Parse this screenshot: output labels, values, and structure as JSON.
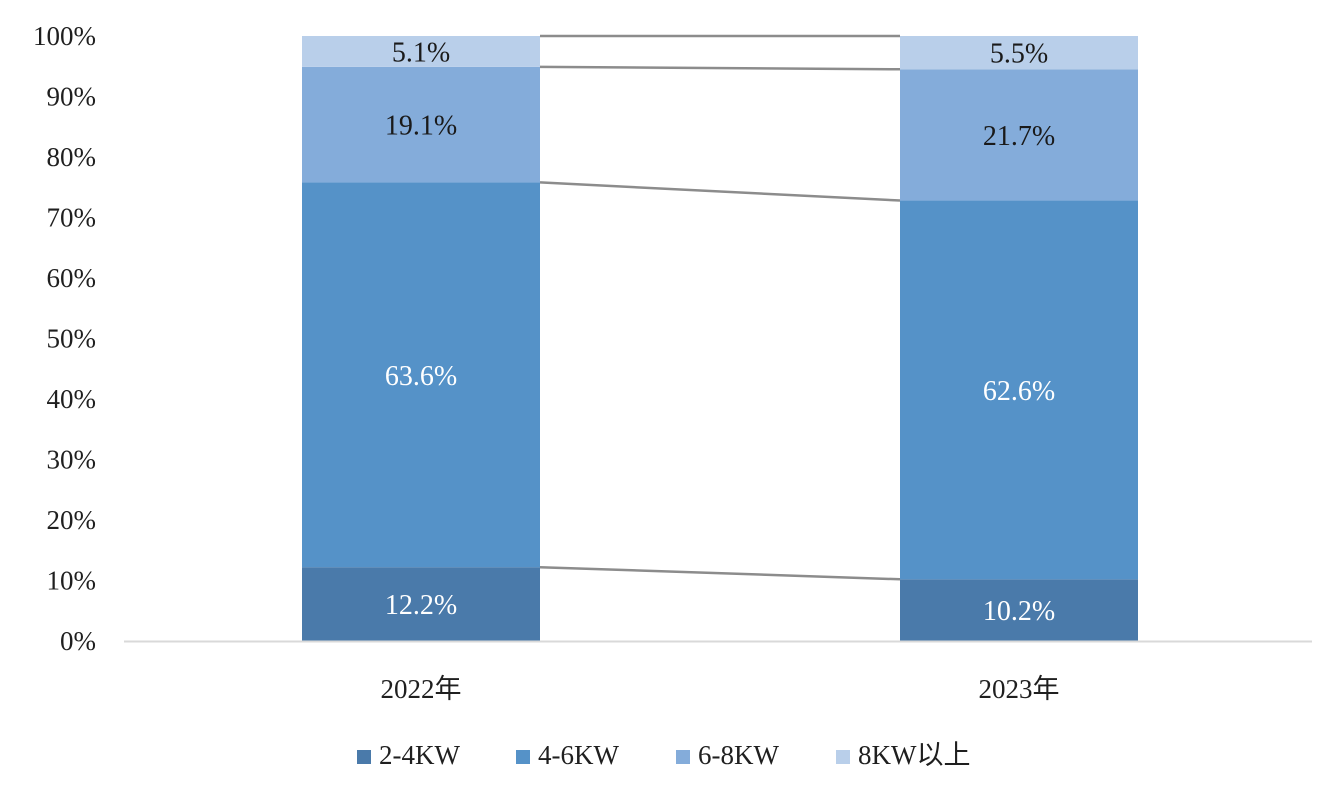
{
  "chart_data": {
    "type": "bar",
    "stacked": true,
    "percent_stacked": true,
    "categories": [
      "2022年",
      "2023年"
    ],
    "series": [
      {
        "name": "2-4KW",
        "values": [
          12.2,
          10.2
        ],
        "labels": [
          "12.2%",
          "10.2%"
        ],
        "color": "#4a7aaa",
        "label_color": "#ffffff"
      },
      {
        "name": "4-6KW",
        "values": [
          63.6,
          62.6
        ],
        "labels": [
          "63.6%",
          "62.6%"
        ],
        "color": "#5592c8",
        "label_color": "#ffffff"
      },
      {
        "name": "6-8KW",
        "values": [
          19.1,
          21.7
        ],
        "labels": [
          "19.1%",
          "21.7%"
        ],
        "color": "#84acda",
        "label_color": "#1a1a1a"
      },
      {
        "name": "8KW以上",
        "values": [
          5.1,
          5.5
        ],
        "labels": [
          "5.1%",
          "5.5%"
        ],
        "color": "#b9cfea",
        "label_color": "#1a1a1a"
      }
    ],
    "y_ticks": [
      "0%",
      "10%",
      "20%",
      "30%",
      "40%",
      "50%",
      "60%",
      "70%",
      "80%",
      "90%",
      "100%"
    ],
    "ylim": [
      0,
      100
    ],
    "series_lines": true,
    "series_line_color": "#8c8c8c",
    "axis_color": "#d9d9d9",
    "legend_position": "bottom",
    "title": "",
    "xlabel": "",
    "ylabel": ""
  }
}
